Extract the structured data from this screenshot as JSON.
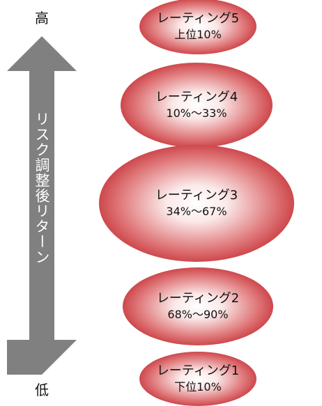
{
  "axis": {
    "high_label": "高",
    "low_label": "低",
    "arrow_label": "リスク調整後リターン",
    "arrow_color": "#808080"
  },
  "tiers": [
    {
      "name": "レーティング5",
      "range": "上位10%"
    },
    {
      "name": "レーティング4",
      "range": "10%〜33%"
    },
    {
      "name": "レーティング3",
      "range": "34%〜67%"
    },
    {
      "name": "レーティング2",
      "range": "68%〜90%"
    },
    {
      "name": "レーティング1",
      "range": "下位10%"
    }
  ],
  "colors": {
    "ellipse_edge": "#c0242a",
    "ellipse_center": "#ffffff"
  }
}
